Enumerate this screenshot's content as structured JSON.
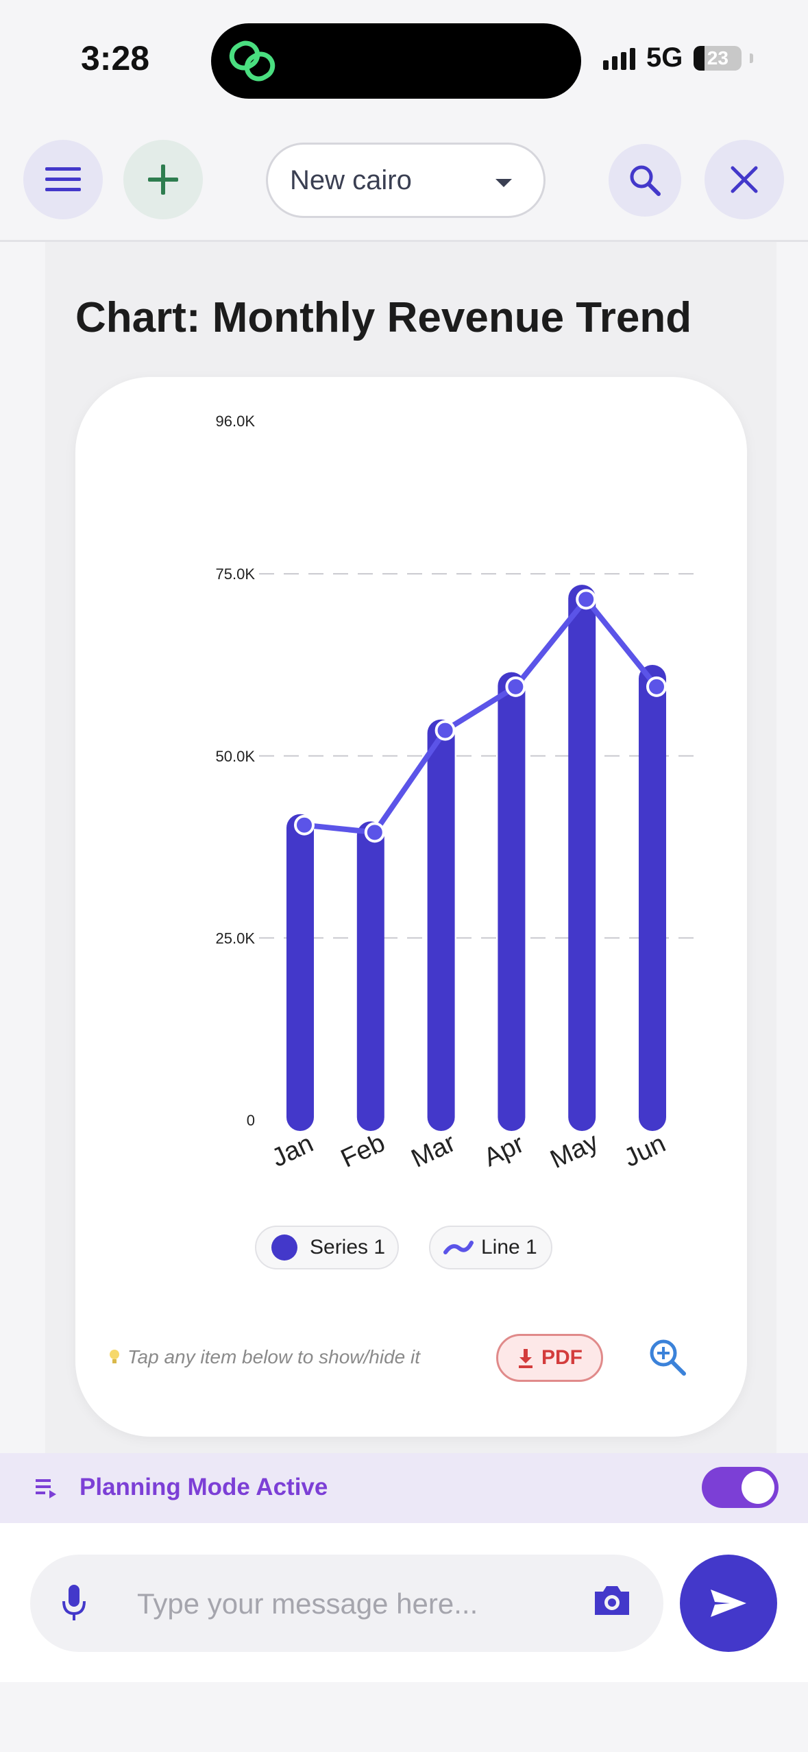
{
  "status_bar": {
    "time": "3:28",
    "network": "5G",
    "battery_level": "23",
    "app_icon": "link-icon"
  },
  "toolbar": {
    "menu_icon": "menu-icon",
    "add_icon": "plus-icon",
    "location": "New cairo",
    "search_icon": "search-icon",
    "close_icon": "close-icon"
  },
  "chart_heading": "Chart: Monthly Revenue Trend",
  "chart_data": {
    "type": "bar",
    "title": "",
    "categories": [
      "Jan",
      "Feb",
      "Mar",
      "Apr",
      "May",
      "Jun"
    ],
    "series": [
      {
        "name": "Series 1",
        "type": "bar",
        "values": [
          42000,
          41000,
          55000,
          61500,
          73500,
          62500
        ],
        "color": "#4338ca"
      },
      {
        "name": "Line 1",
        "type": "line",
        "values": [
          40500,
          39500,
          53500,
          59500,
          71500,
          59500
        ],
        "color": "#5b54e8"
      }
    ],
    "ylim": [
      0,
      96000
    ],
    "yticks": [
      "0",
      "25.0K",
      "50.0K",
      "75.0K",
      "96.0K"
    ],
    "ytick_values": [
      0,
      25000,
      50000,
      75000,
      96000
    ],
    "gridlines": [
      25000,
      50000,
      75000
    ],
    "grid": true,
    "legend_position": "bottom-center"
  },
  "legend": {
    "series_label": "Series 1",
    "line_label": "Line 1"
  },
  "tip_text": "Tap any item below to show/hide it",
  "pdf_label": "PDF",
  "planning": {
    "label": "Planning Mode Active",
    "enabled": true
  },
  "composer": {
    "placeholder": "Type your message here..."
  },
  "colors": {
    "accent": "#4338ca",
    "line": "#5b54e8",
    "planning": "#7c3fd6",
    "pdf": "#d33c3c"
  }
}
